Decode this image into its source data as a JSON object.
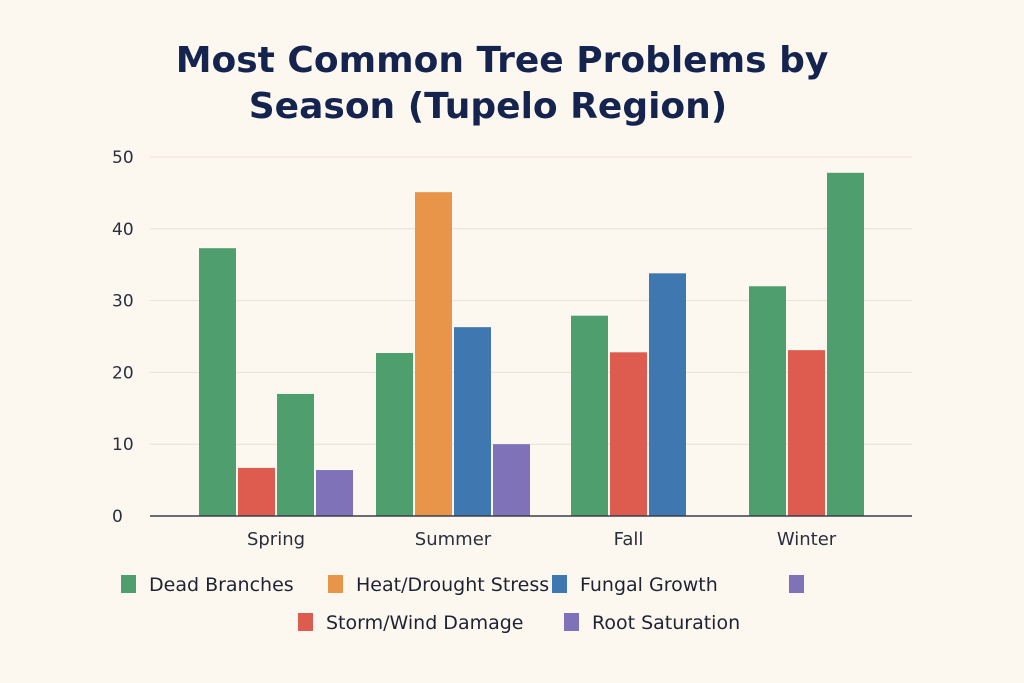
{
  "chart_data": {
    "type": "bar",
    "title_lines": [
      "Most Common Tree Problems by",
      "Season (Tupelo Region)"
    ],
    "xlabel": "",
    "ylabel": "",
    "ylim": [
      0,
      50
    ],
    "yticks": [
      "0",
      "10",
      "20",
      "30",
      "40",
      "50"
    ],
    "grid": true,
    "legend_placement": "bottom",
    "categories": [
      "Spring",
      "Summer",
      "Fall",
      "Winter"
    ],
    "bars": [
      [
        {
          "series": "Dead Branches",
          "value": 37.3
        },
        {
          "series": "Storm/Wind Damage",
          "value": 6.7
        },
        {
          "series": "Dead Branches",
          "value": 17.0
        },
        {
          "series": "Root Saturation",
          "value": 6.4
        }
      ],
      [
        {
          "series": "Dead Branches",
          "value": 22.7
        },
        {
          "series": "Heat/Drought Stress",
          "value": 45.1
        },
        {
          "series": "Fungal Growth",
          "value": 26.3
        },
        {
          "series": "Root Saturation",
          "value": 10.0
        }
      ],
      [
        {
          "series": "Dead Branches",
          "value": 27.9
        },
        {
          "series": "Storm/Wind Damage",
          "value": 22.8
        },
        {
          "series": "Fungal Growth",
          "value": 33.8
        }
      ],
      [
        {
          "series": "Dead Branches",
          "value": 32.0
        },
        {
          "series": "Storm/Wind Damage",
          "value": 23.1
        },
        {
          "series": "Dead Branches",
          "value": 47.8
        }
      ]
    ],
    "legend": [
      {
        "name": "Dead Branches",
        "color": "#4e9e6e"
      },
      {
        "name": "Heat/Drought Stress",
        "color": "#e8954a"
      },
      {
        "name": "Fungal Growth",
        "color": "#3f78b0"
      },
      {
        "name": "",
        "color": "#7f72b8"
      },
      {
        "name": "Storm/Wind Damage",
        "color": "#dd5c4f"
      },
      {
        "name": "Root Saturation",
        "color": "#7f72b8"
      }
    ],
    "colors": {
      "Dead Branches": "#4e9e6e",
      "Heat/Drought Stress": "#e8954a",
      "Fungal Growth": "#3f78b0",
      "Storm/Wind Damage": "#dd5c4f",
      "Root Saturation": "#7f72b8"
    }
  }
}
